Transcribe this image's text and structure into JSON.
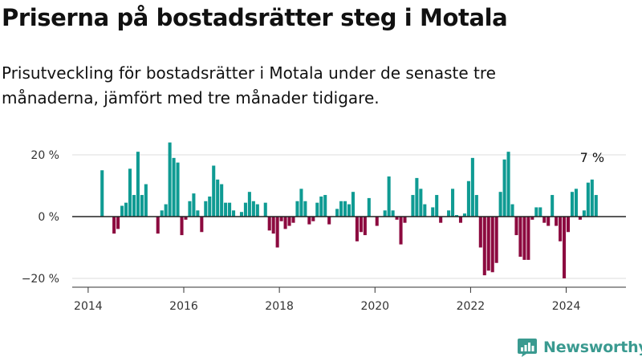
{
  "title": "Priserna på bostadsrätter steg i Motala",
  "subtitle": "Prisutveckling för bostadsrätter i Motala under de senaste tre månaderna, jämfört med tre månader tidigare.",
  "brand": {
    "name": "Newsworthy",
    "color": "#3a9a90"
  },
  "colors": {
    "positive": "#0f9b93",
    "negative": "#8c0a3f",
    "grid": "#dddddd",
    "axis": "#333333"
  },
  "chart_data": {
    "type": "bar",
    "ylim": [
      -20,
      20
    ],
    "yticks": [
      {
        "value": 20,
        "label": "20 %"
      },
      {
        "value": 0,
        "label": "0 %"
      },
      {
        "value": -20,
        "label": "−20 %"
      }
    ],
    "xlim": [
      "2013-09",
      "2025-04"
    ],
    "xticks": [
      {
        "value": "2014-01",
        "label": "2014"
      },
      {
        "value": "2016-01",
        "label": "2016"
      },
      {
        "value": "2018-01",
        "label": "2018"
      },
      {
        "value": "2020-01",
        "label": "2020"
      },
      {
        "value": "2022-01",
        "label": "2022"
      },
      {
        "value": "2024-01",
        "label": "2024"
      }
    ],
    "start_month": "2014-04",
    "values": [
      15,
      null,
      0,
      -5.5,
      -4,
      3.5,
      4.5,
      15.5,
      7,
      21,
      7,
      10.5,
      null,
      0,
      -5.5,
      2,
      4,
      24,
      19,
      17.5,
      -6,
      -1,
      5,
      7.5,
      2,
      -5,
      5,
      6.5,
      16.5,
      12,
      10.5,
      4.5,
      4.5,
      2,
      0,
      1.5,
      4.5,
      8,
      5,
      4,
      0,
      4.5,
      -4.5,
      -5.5,
      -10,
      -1.5,
      -4,
      -3,
      -2,
      5,
      9,
      5,
      -2.5,
      -1.5,
      4.5,
      6.5,
      7,
      -2.5,
      0,
      2.5,
      5,
      5,
      4,
      8,
      -8,
      -5,
      -6,
      6,
      0,
      -3,
      0,
      2,
      13,
      2,
      -1,
      -9,
      -2,
      0,
      7,
      12.5,
      9,
      4,
      0,
      3,
      7,
      -2,
      0,
      2,
      9,
      0.5,
      -2,
      1,
      11.5,
      19,
      7,
      -10,
      -19,
      -17.5,
      -18,
      -15,
      8,
      18.5,
      21,
      4,
      -6,
      -13,
      -14,
      -14,
      -1,
      3,
      3,
      -2,
      -3,
      7,
      -3,
      -8,
      -20,
      -5,
      8,
      9,
      -1,
      2,
      11,
      12,
      7
    ],
    "annotation": {
      "label": "7 %",
      "month": "2024-07"
    }
  }
}
